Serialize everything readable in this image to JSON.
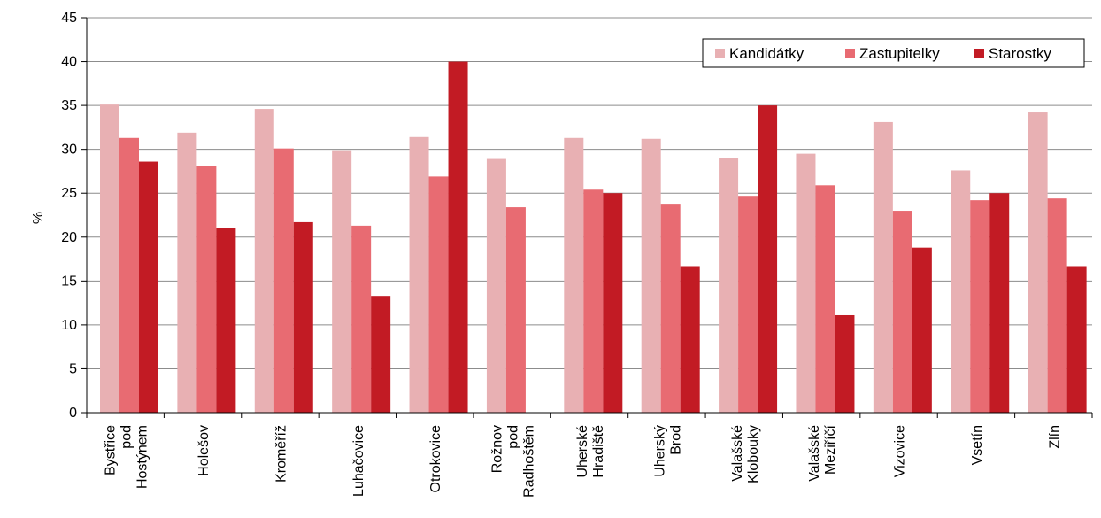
{
  "chart_data": {
    "type": "bar",
    "ylabel": "%",
    "ylim": [
      0,
      45
    ],
    "yticks": [
      0,
      5,
      10,
      15,
      20,
      25,
      30,
      35,
      40,
      45
    ],
    "grid": true,
    "legend_position": "top-right",
    "categories": [
      [
        "Bystřice",
        "pod",
        "Hostýnem"
      ],
      [
        "Holešov"
      ],
      [
        "Kroměříž"
      ],
      [
        "Luhačovice"
      ],
      [
        "Otrokovice"
      ],
      [
        "Rožnov",
        "pod",
        "Radhoštěm"
      ],
      [
        "Uherské",
        "Hradiště"
      ],
      [
        "Uherský",
        "Brod"
      ],
      [
        "Valašské",
        "Klobouky"
      ],
      [
        "Valašské",
        "Meziříčí"
      ],
      [
        "Vizovice"
      ],
      [
        "Vsetín"
      ],
      [
        "Zlín"
      ]
    ],
    "series": [
      {
        "name": "Kandidátky",
        "color": "#e8b0b3",
        "values": [
          35.1,
          31.9,
          34.6,
          29.9,
          31.4,
          28.9,
          31.3,
          31.2,
          29.0,
          29.5,
          33.1,
          27.6,
          34.2
        ]
      },
      {
        "name": "Zastupitelky",
        "color": "#e86b72",
        "values": [
          31.3,
          28.1,
          30.1,
          21.3,
          26.9,
          23.4,
          25.4,
          23.8,
          24.7,
          25.9,
          23.0,
          24.2,
          24.4
        ]
      },
      {
        "name": "Starostky",
        "color": "#c21b24",
        "values": [
          28.6,
          21.0,
          21.7,
          13.3,
          40.0,
          0,
          25.0,
          16.7,
          35.0,
          11.1,
          18.8,
          25.0,
          16.7
        ]
      }
    ]
  }
}
